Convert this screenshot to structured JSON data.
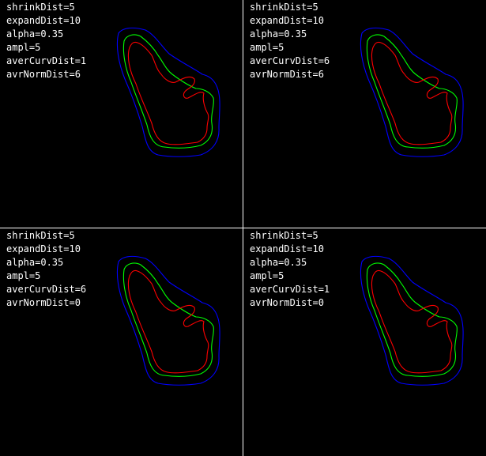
{
  "colors": {
    "background": "#000000",
    "divider": "#ffffff",
    "text": "#ffffff",
    "outer_contour": "#0000ff",
    "middle_contour": "#00ff00",
    "inner_contour": "#ff0000"
  },
  "panels": [
    {
      "lines": [
        "shrinkDist=5",
        "expandDist=10",
        "alpha=0.35",
        "ampl=5",
        "averCurvDist=1",
        "avrNormDist=6"
      ]
    },
    {
      "lines": [
        "shrinkDist=5",
        "expandDist=10",
        "alpha=0.35",
        "ampl=5",
        "averCurvDist=6",
        "avrNormDist=6"
      ]
    },
    {
      "lines": [
        "shrinkDist=5",
        "expandDist=10",
        "alpha=0.35",
        "ampl=5",
        "averCurvDist=6",
        "avrNormDist=0"
      ]
    },
    {
      "lines": [
        "shrinkDist=5",
        "expandDist=10",
        "alpha=0.35",
        "ampl=5",
        "averCurvDist=1",
        "avrNormDist=0"
      ]
    }
  ]
}
